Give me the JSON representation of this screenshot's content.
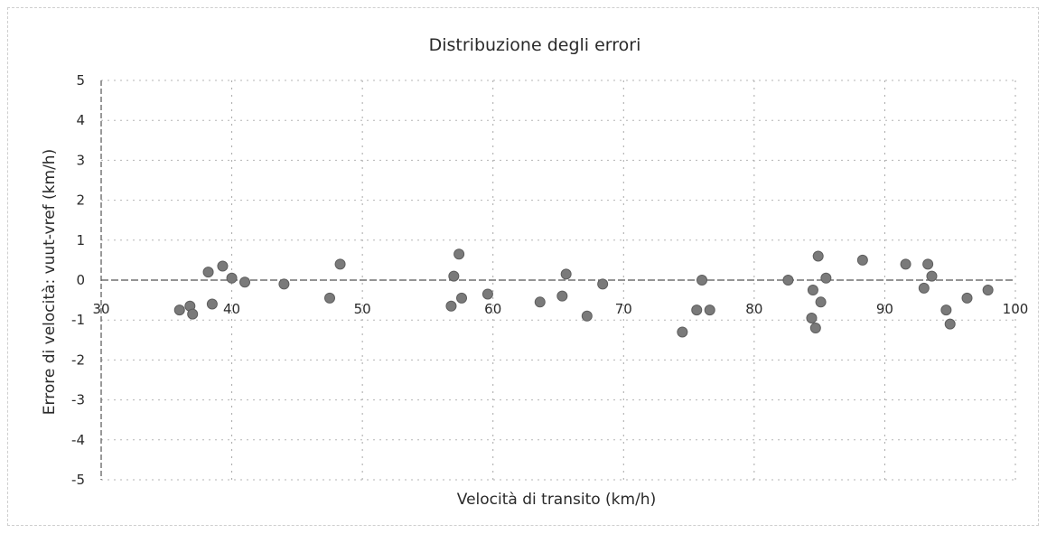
{
  "chart_data": {
    "type": "scatter",
    "title": "Distribuzione degli errori",
    "xlabel": "Velocità di transito (km/h)",
    "ylabel": "Errore di velocità: vuut-vref  (km/h)",
    "xlim": [
      30,
      100
    ],
    "ylim": [
      -5,
      5
    ],
    "x_ticks": [
      30,
      40,
      50,
      60,
      70,
      80,
      90,
      100
    ],
    "y_ticks": [
      5,
      4,
      3,
      2,
      1,
      0,
      -1,
      -2,
      -3,
      -4,
      -5
    ],
    "grid": true,
    "legend": "none",
    "marker_color": "#7a7a7a",
    "points": [
      {
        "x": 36.0,
        "y": -0.75
      },
      {
        "x": 36.8,
        "y": -0.65
      },
      {
        "x": 37.0,
        "y": -0.85
      },
      {
        "x": 38.2,
        "y": 0.2
      },
      {
        "x": 38.5,
        "y": -0.6
      },
      {
        "x": 39.3,
        "y": 0.35
      },
      {
        "x": 40.0,
        "y": 0.05
      },
      {
        "x": 41.0,
        "y": -0.05
      },
      {
        "x": 44.0,
        "y": -0.1
      },
      {
        "x": 47.5,
        "y": -0.45
      },
      {
        "x": 48.3,
        "y": 0.4
      },
      {
        "x": 56.8,
        "y": -0.65
      },
      {
        "x": 57.0,
        "y": 0.1
      },
      {
        "x": 57.4,
        "y": 0.65
      },
      {
        "x": 57.6,
        "y": -0.45
      },
      {
        "x": 59.6,
        "y": -0.35
      },
      {
        "x": 63.6,
        "y": -0.55
      },
      {
        "x": 65.3,
        "y": -0.4
      },
      {
        "x": 65.6,
        "y": 0.15
      },
      {
        "x": 67.2,
        "y": -0.9
      },
      {
        "x": 68.4,
        "y": -0.1
      },
      {
        "x": 74.5,
        "y": -1.3
      },
      {
        "x": 75.6,
        "y": -0.75
      },
      {
        "x": 76.0,
        "y": 0.0
      },
      {
        "x": 76.6,
        "y": -0.75
      },
      {
        "x": 82.6,
        "y": 0.0
      },
      {
        "x": 84.4,
        "y": -0.95
      },
      {
        "x": 84.5,
        "y": -0.25
      },
      {
        "x": 84.7,
        "y": -1.2
      },
      {
        "x": 84.9,
        "y": 0.6
      },
      {
        "x": 85.1,
        "y": -0.55
      },
      {
        "x": 85.5,
        "y": 0.05
      },
      {
        "x": 88.3,
        "y": 0.5
      },
      {
        "x": 91.6,
        "y": 0.4
      },
      {
        "x": 93.0,
        "y": -0.2
      },
      {
        "x": 93.3,
        "y": 0.4
      },
      {
        "x": 93.6,
        "y": 0.1
      },
      {
        "x": 94.7,
        "y": -0.75
      },
      {
        "x": 95.0,
        "y": -1.1
      },
      {
        "x": 96.3,
        "y": -0.45
      },
      {
        "x": 97.9,
        "y": -0.25
      }
    ]
  }
}
